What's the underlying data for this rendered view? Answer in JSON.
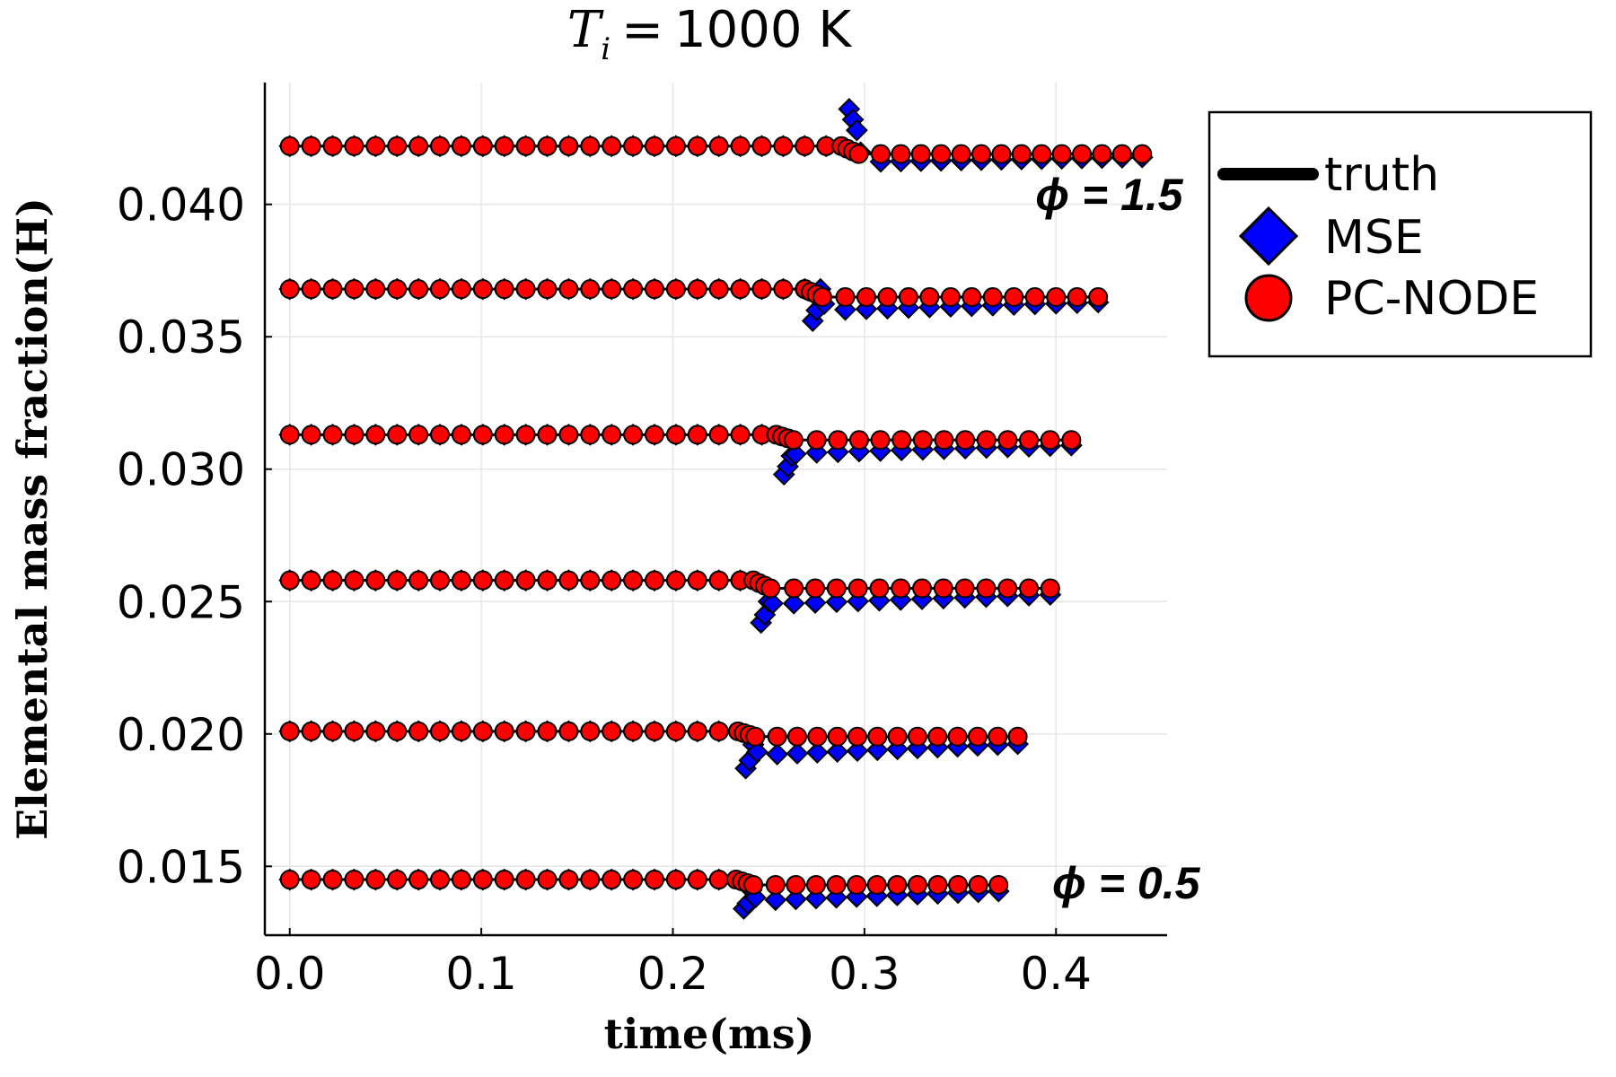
{
  "chart_data": {
    "type": "scatter",
    "title": {
      "variable": "T",
      "subscript": "i",
      "equals": "=",
      "value": "1000 K"
    },
    "xlabel": "time(ms)",
    "ylabel": "Elemental mass fraction(H)",
    "xlim": [
      -0.013,
      0.458
    ],
    "ylim": [
      0.0124,
      0.0446
    ],
    "xticks": [
      0.0,
      0.1,
      0.2,
      0.3,
      0.4
    ],
    "xtick_labels": [
      "0.0",
      "0.1",
      "0.2",
      "0.3",
      "0.4"
    ],
    "yticks": [
      0.015,
      0.02,
      0.025,
      0.03,
      0.035,
      0.04
    ],
    "ytick_labels": [
      "0.015",
      "0.020",
      "0.025",
      "0.030",
      "0.035",
      "0.040"
    ],
    "grid": true,
    "legend_position": "outside-top-right",
    "legend": [
      {
        "name": "truth",
        "marker": "line",
        "color": "#000000"
      },
      {
        "name": "MSE",
        "marker": "diamond",
        "color": "#0000ff"
      },
      {
        "name": "PC-NODE",
        "marker": "circle",
        "color": "#ff0000"
      }
    ],
    "annotations": [
      {
        "text": "ϕ = 1.5",
        "x": 0.41,
        "y": 0.0404
      },
      {
        "text": "ϕ = 0.5",
        "x": 0.385,
        "y": 0.0144
      }
    ],
    "cases": [
      {
        "truth_value": 0.0145,
        "ignition_time": 0.237,
        "end_time": 0.37,
        "mse_dip": [
          0.0134,
          0.0136,
          0.0141
        ],
        "mse_post": 0.0137,
        "pc_post": 0.0143
      },
      {
        "truth_value": 0.0201,
        "ignition_time": 0.238,
        "end_time": 0.38,
        "mse_dip": [
          0.0187,
          0.019,
          0.0196
        ],
        "mse_post": 0.0192,
        "pc_post": 0.0199
      },
      {
        "truth_value": 0.0258,
        "ignition_time": 0.246,
        "end_time": 0.397,
        "mse_dip": [
          0.0242,
          0.0245,
          0.025
        ],
        "mse_post": 0.0249,
        "pc_post": 0.0255
      },
      {
        "truth_value": 0.0313,
        "ignition_time": 0.258,
        "end_time": 0.408,
        "mse_dip": [
          0.0298,
          0.0301,
          0.0305
        ],
        "mse_post": 0.0306,
        "pc_post": 0.0311
      },
      {
        "truth_value": 0.0368,
        "ignition_time": 0.273,
        "end_time": 0.422,
        "mse_dip": [
          0.0356,
          0.036,
          0.0368
        ],
        "mse_post": 0.036,
        "pc_post": 0.0365
      },
      {
        "truth_value": 0.0422,
        "ignition_time": 0.292,
        "end_time": 0.445,
        "mse_dip": [
          0.0436,
          0.0432,
          0.0428
        ],
        "mse_post": 0.0416,
        "pc_post": 0.0419
      }
    ],
    "series": [
      {
        "name": "truth",
        "points": [
          [
            0.0,
            0.0145
          ],
          [
            0.237,
            0.0145
          ],
          [
            0.237,
            0.0143
          ],
          [
            0.37,
            0.0143
          ]
        ]
      },
      {
        "name": "MSE",
        "description": "diamond markers following the truth curve before ignition; dip at ignition"
      },
      {
        "name": "PC-NODE",
        "description": "circle markers following the truth curve closely"
      }
    ]
  }
}
